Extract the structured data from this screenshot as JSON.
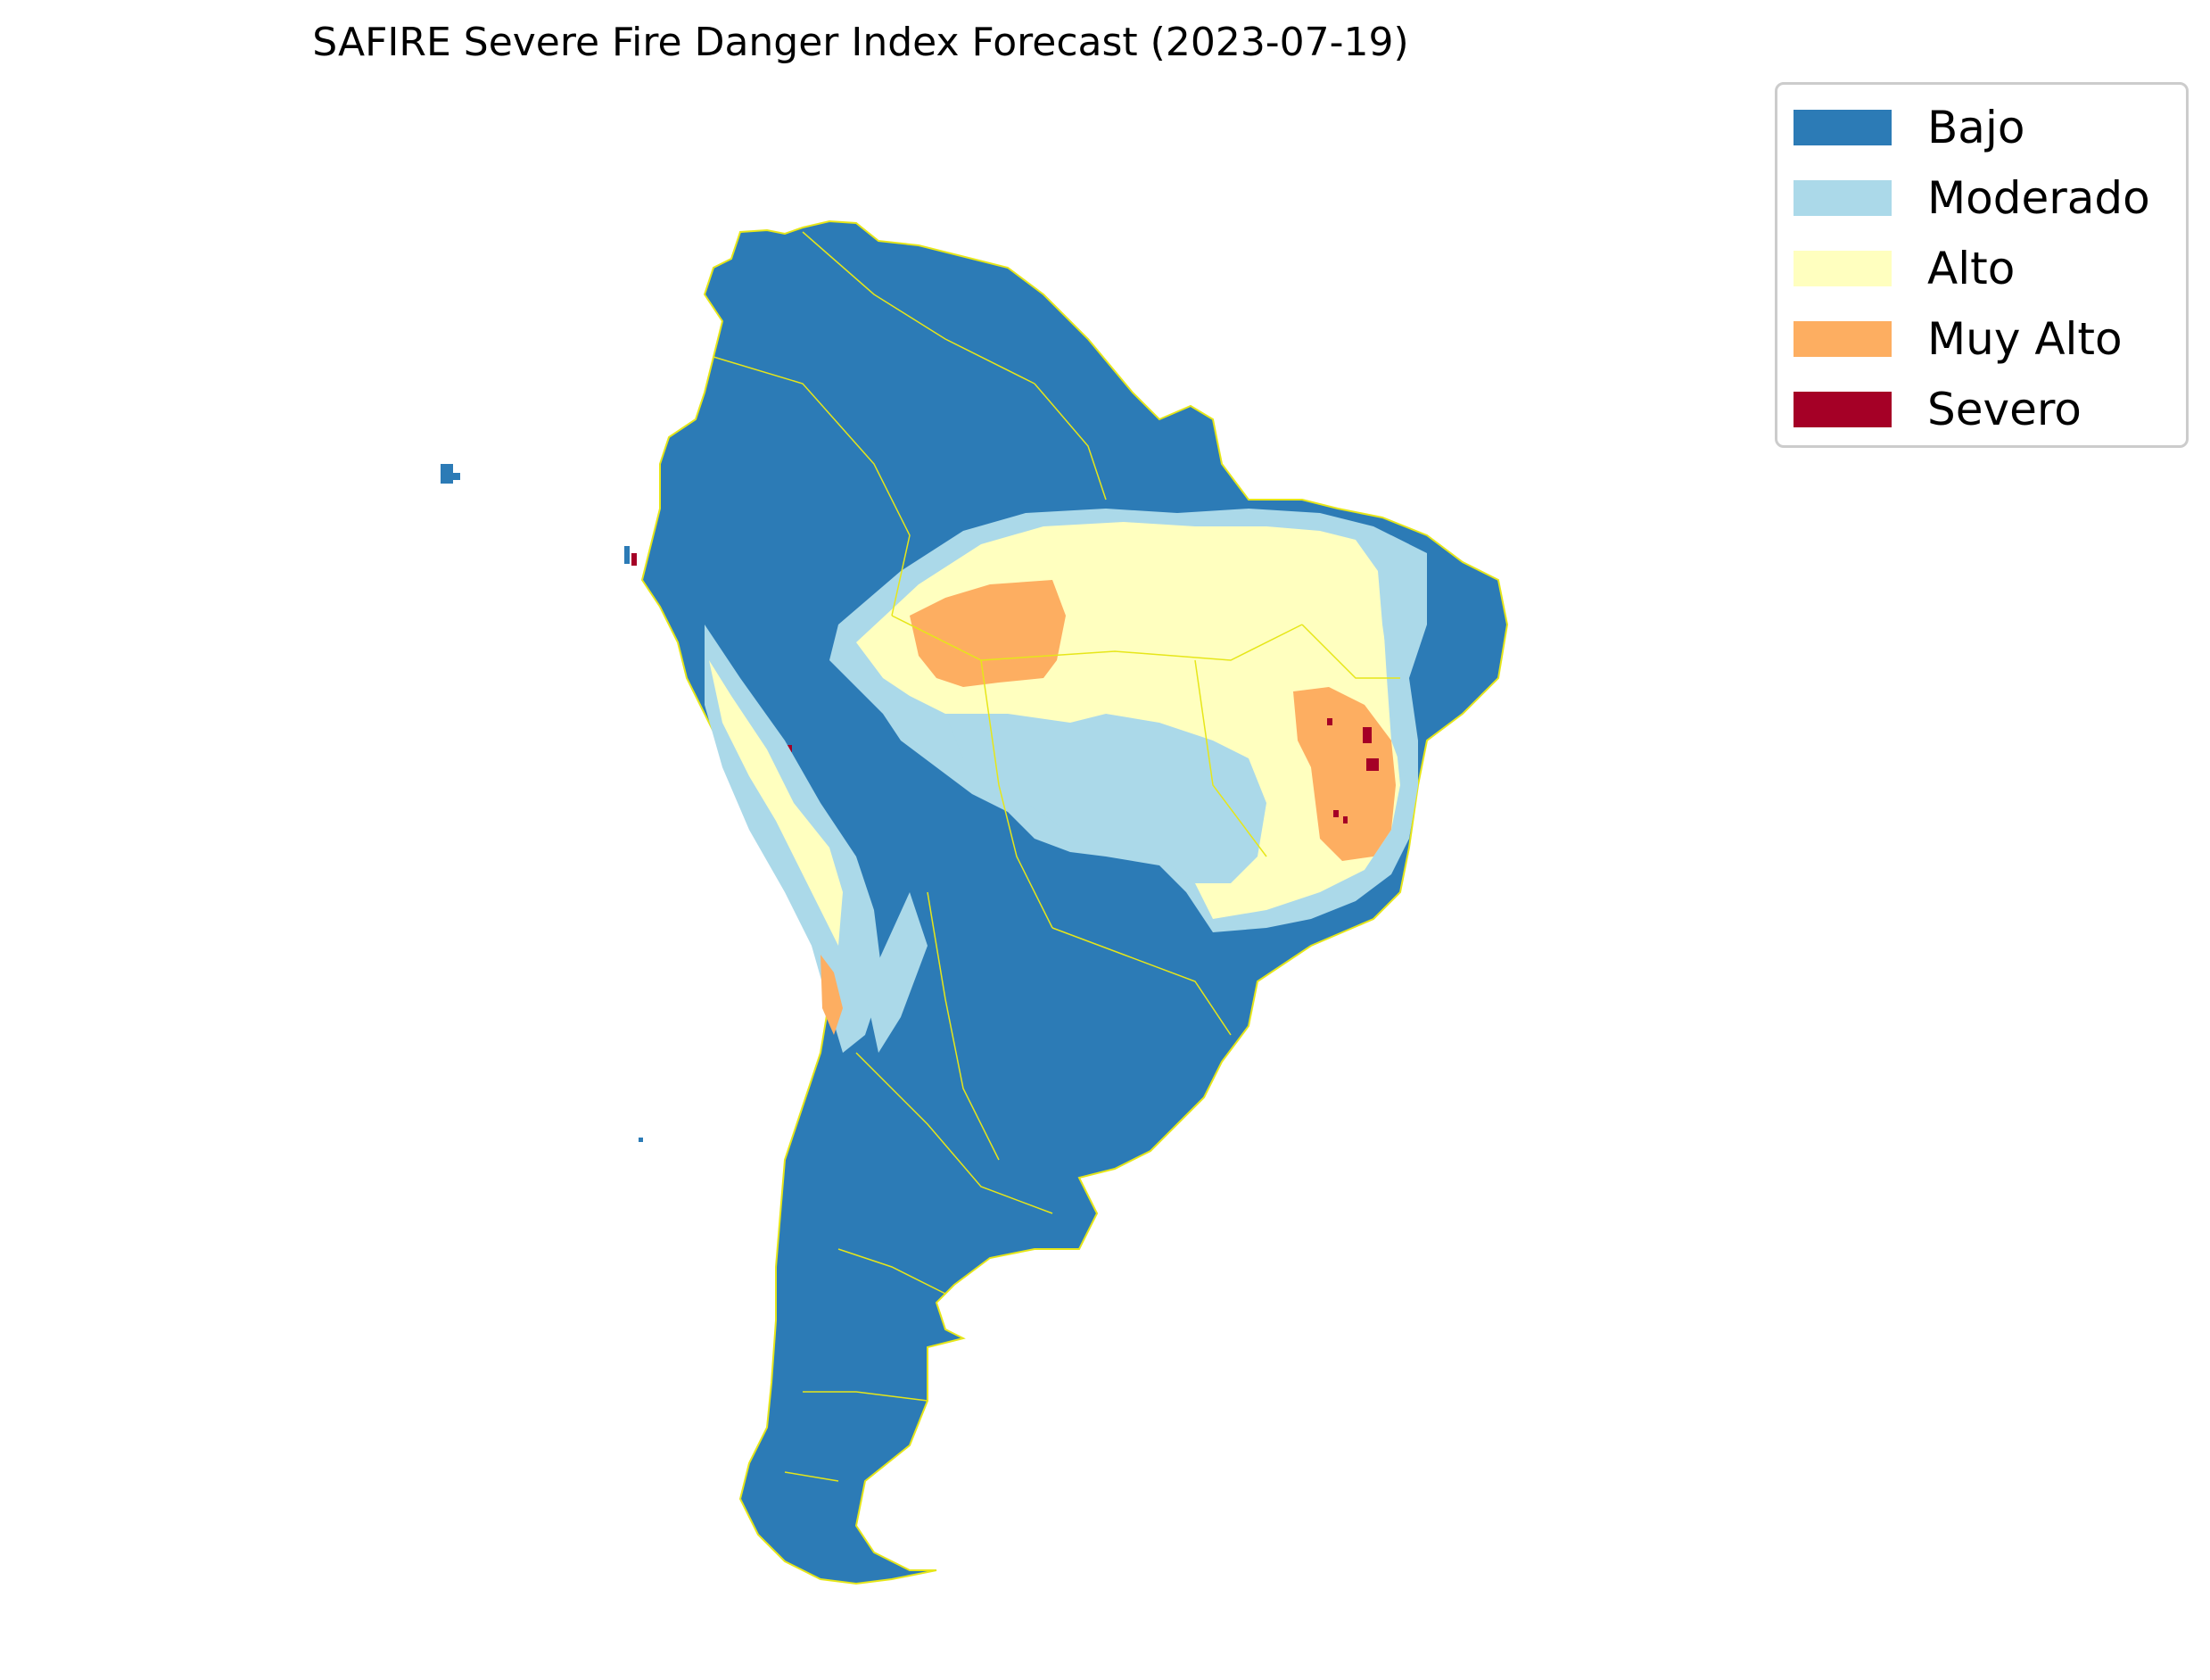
{
  "title": "SAFIRE Severe Fire Danger Index Forecast (2023-07-19)",
  "legend": {
    "items": [
      {
        "label": "Bajo",
        "color": "#2c7bb6"
      },
      {
        "label": "Moderado",
        "color": "#abd9e9"
      },
      {
        "label": "Alto",
        "color": "#ffffbf"
      },
      {
        "label": "Muy Alto",
        "color": "#fdae61"
      },
      {
        "label": "Severo",
        "color": "#a50026"
      }
    ]
  },
  "map": {
    "region": "South America",
    "boundary_color": "#e6e619",
    "background": "#ffffff"
  }
}
